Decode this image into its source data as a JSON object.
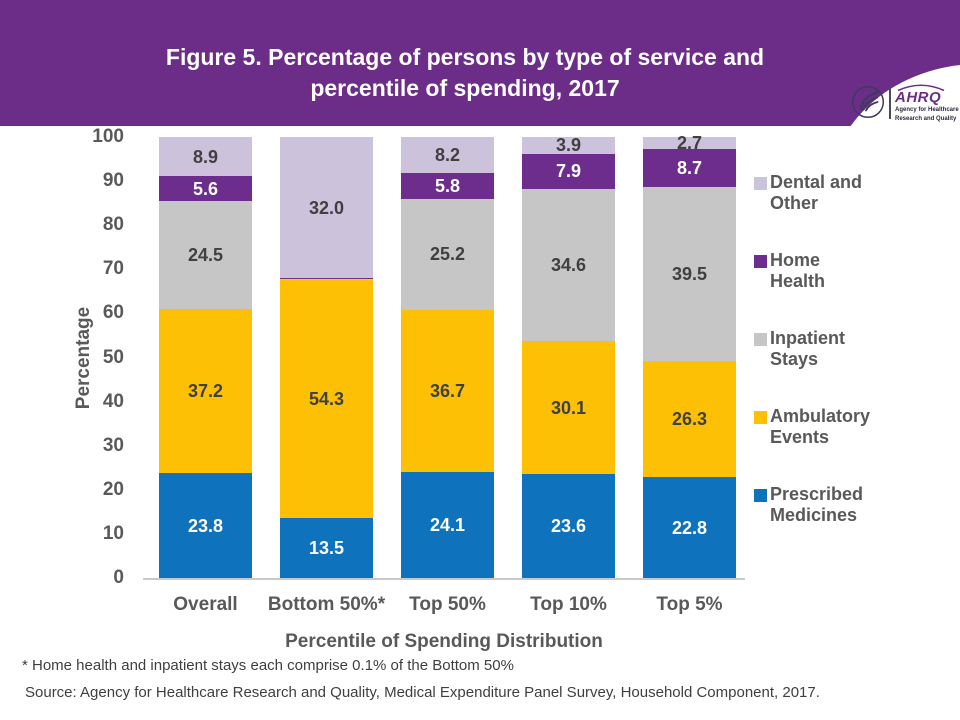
{
  "header": {
    "title_line1": "Figure 5. Percentage of persons by type of service and",
    "title_line2": "percentile of spending, 2017",
    "logo": {
      "org": "AHRQ",
      "tagline_line1": "Agency for Healthcare",
      "tagline_line2": "Research and Quality"
    }
  },
  "chart_data": {
    "type": "bar",
    "stacked": true,
    "title": "Figure 5. Percentage of persons by type of service and percentile of spending, 2017",
    "categories": [
      "Overall",
      "Bottom 50%*",
      "Top 50%",
      "Top 10%",
      "Top 5%"
    ],
    "series": [
      {
        "name": "Prescribed Medicines",
        "color": "#0e72bc",
        "label_color": "#ffffff",
        "values": [
          23.8,
          13.5,
          24.1,
          23.6,
          22.8
        ]
      },
      {
        "name": "Ambulatory Events",
        "color": "#fdc004",
        "label_color": "#404040",
        "values": [
          37.2,
          54.3,
          36.7,
          30.1,
          26.3
        ]
      },
      {
        "name": "Inpatient Stays",
        "color": "#c6c6c6",
        "label_color": "#404040",
        "values": [
          24.5,
          0.1,
          25.2,
          34.6,
          39.5
        ]
      },
      {
        "name": "Home Health",
        "color": "#6d2d8c",
        "label_color": "#ffffff",
        "values": [
          5.6,
          0.1,
          5.8,
          7.9,
          8.7
        ]
      },
      {
        "name": "Dental and Other",
        "color": "#ccc2dc",
        "label_color": "#404040",
        "values": [
          8.9,
          32.0,
          8.2,
          3.9,
          2.7
        ]
      }
    ],
    "xlabel": "Percentile of Spending Distribution",
    "ylabel": "Percentage",
    "ylim": [
      0,
      100
    ],
    "yticks": [
      0,
      10,
      20,
      30,
      40,
      50,
      60,
      70,
      80,
      90,
      100
    ],
    "grid": false,
    "legend_position": "right",
    "legend_order_top_to_bottom": [
      "Dental and Other",
      "Home Health",
      "Inpatient Stays",
      "Ambulatory Events",
      "Prescribed Medicines"
    ]
  },
  "footnotes": {
    "note": "* Home health and inpatient stays each comprise 0.1% of the Bottom 50%",
    "source": "Source: Agency for Healthcare Research and Quality, Medical Expenditure Panel Survey, Household Component, 2017."
  }
}
